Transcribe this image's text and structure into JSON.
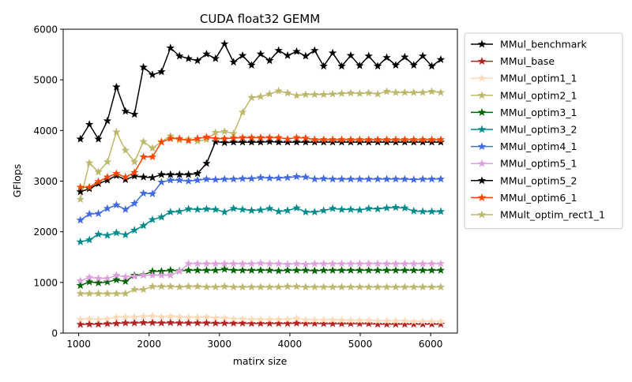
{
  "chart_data": {
    "type": "line",
    "title": "CUDA float32 GEMM",
    "xlabel": "matirx size",
    "ylabel": "GFlops",
    "xlim": [
      780,
      6380
    ],
    "ylim": [
      0,
      6000
    ],
    "xticks": [
      1000,
      2000,
      3000,
      4000,
      5000,
      6000
    ],
    "yticks": [
      0,
      1000,
      2000,
      3000,
      4000,
      5000,
      6000
    ],
    "grid": false,
    "legend_position": "right",
    "x": [
      1024,
      1152,
      1280,
      1408,
      1536,
      1664,
      1792,
      1920,
      2048,
      2176,
      2304,
      2432,
      2560,
      2688,
      2816,
      2944,
      3072,
      3200,
      3328,
      3456,
      3584,
      3712,
      3840,
      3968,
      4096,
      4224,
      4352,
      4480,
      4608,
      4736,
      4864,
      4992,
      5120,
      5248,
      5376,
      5504,
      5632,
      5760,
      5888,
      6016,
      6144
    ],
    "series": [
      {
        "name": "MMul_benchmark",
        "color": "#000000",
        "values": [
          3830,
          4120,
          3830,
          4190,
          4860,
          4380,
          4320,
          5250,
          5100,
          5160,
          5630,
          5470,
          5420,
          5380,
          5510,
          5420,
          5710,
          5350,
          5480,
          5290,
          5510,
          5380,
          5580,
          5480,
          5560,
          5470,
          5580,
          5270,
          5530,
          5270,
          5480,
          5280,
          5470,
          5270,
          5440,
          5290,
          5450,
          5290,
          5470,
          5270,
          5400
        ]
      },
      {
        "name": "MMul_base",
        "color": "#b22222",
        "values": [
          170,
          175,
          175,
          185,
          190,
          200,
          200,
          205,
          205,
          200,
          205,
          200,
          200,
          200,
          200,
          195,
          195,
          195,
          195,
          190,
          190,
          190,
          190,
          190,
          195,
          190,
          190,
          185,
          185,
          185,
          185,
          185,
          185,
          175,
          175,
          175,
          175,
          175,
          175,
          175,
          175
        ]
      },
      {
        "name": "MMul_optim1_1",
        "color": "#ffdab9",
        "values": [
          270,
          280,
          270,
          280,
          310,
          320,
          320,
          330,
          340,
          320,
          330,
          320,
          310,
          310,
          320,
          300,
          300,
          280,
          280,
          270,
          270,
          270,
          270,
          270,
          290,
          260,
          260,
          260,
          260,
          255,
          250,
          250,
          250,
          240,
          240,
          240,
          240,
          230,
          230,
          230,
          230
        ]
      },
      {
        "name": "MMul_optim2_1",
        "color": "#bdb76b",
        "values": [
          2640,
          3360,
          3180,
          3380,
          3970,
          3610,
          3380,
          3780,
          3650,
          3780,
          3890,
          3810,
          3830,
          3790,
          3820,
          3960,
          3980,
          3940,
          4360,
          4650,
          4670,
          4720,
          4780,
          4740,
          4690,
          4710,
          4710,
          4710,
          4720,
          4730,
          4740,
          4730,
          4740,
          4720,
          4770,
          4750,
          4750,
          4750,
          4750,
          4770,
          4750
        ]
      },
      {
        "name": "MMul_optim3_1",
        "color": "#006400",
        "values": [
          940,
          1010,
          990,
          1010,
          1050,
          1020,
          1140,
          1150,
          1220,
          1220,
          1240,
          1230,
          1240,
          1240,
          1240,
          1240,
          1260,
          1240,
          1240,
          1240,
          1240,
          1240,
          1230,
          1240,
          1240,
          1240,
          1230,
          1240,
          1240,
          1240,
          1240,
          1240,
          1240,
          1240,
          1240,
          1240,
          1240,
          1240,
          1240,
          1240,
          1240
        ]
      },
      {
        "name": "MMul_optim3_2",
        "color": "#008b8b",
        "values": [
          1800,
          1840,
          1950,
          1930,
          1980,
          1940,
          2030,
          2120,
          2240,
          2290,
          2390,
          2400,
          2450,
          2440,
          2450,
          2440,
          2390,
          2460,
          2440,
          2420,
          2430,
          2460,
          2400,
          2420,
          2470,
          2390,
          2390,
          2420,
          2460,
          2440,
          2440,
          2430,
          2460,
          2450,
          2470,
          2480,
          2470,
          2410,
          2400,
          2400,
          2400
        ]
      },
      {
        "name": "MMul_optim4_1",
        "color": "#4169e1",
        "values": [
          2230,
          2350,
          2360,
          2460,
          2530,
          2440,
          2560,
          2760,
          2750,
          2980,
          3020,
          3020,
          3000,
          3020,
          3040,
          3030,
          3040,
          3040,
          3050,
          3050,
          3070,
          3060,
          3060,
          3070,
          3090,
          3080,
          3040,
          3050,
          3040,
          3040,
          3040,
          3040,
          3040,
          3040,
          3040,
          3040,
          3040,
          3030,
          3040,
          3040,
          3040
        ]
      },
      {
        "name": "MMul_optim5_1",
        "color": "#dda0dd",
        "values": [
          1030,
          1100,
          1080,
          1080,
          1140,
          1110,
          1120,
          1140,
          1140,
          1140,
          1140,
          1220,
          1370,
          1370,
          1370,
          1370,
          1370,
          1370,
          1370,
          1370,
          1380,
          1370,
          1370,
          1360,
          1370,
          1360,
          1370,
          1370,
          1370,
          1370,
          1370,
          1370,
          1370,
          1370,
          1370,
          1370,
          1370,
          1370,
          1370,
          1370,
          1370
        ]
      },
      {
        "name": "MMul_optim5_2",
        "color": "#000000",
        "values": [
          2790,
          2850,
          2950,
          3020,
          3110,
          3030,
          3100,
          3080,
          3070,
          3130,
          3130,
          3130,
          3130,
          3150,
          3350,
          3780,
          3760,
          3770,
          3770,
          3770,
          3770,
          3780,
          3770,
          3770,
          3770,
          3770,
          3770,
          3770,
          3770,
          3770,
          3770,
          3770,
          3770,
          3770,
          3770,
          3770,
          3770,
          3770,
          3770,
          3770,
          3770
        ]
      },
      {
        "name": "MMul_optim6_1",
        "color": "#ff4500",
        "values": [
          2880,
          2880,
          2990,
          3080,
          3150,
          3080,
          3170,
          3480,
          3480,
          3770,
          3840,
          3840,
          3800,
          3840,
          3870,
          3840,
          3840,
          3850,
          3860,
          3860,
          3860,
          3860,
          3860,
          3830,
          3860,
          3850,
          3820,
          3820,
          3820,
          3820,
          3820,
          3820,
          3820,
          3820,
          3820,
          3820,
          3820,
          3820,
          3820,
          3820,
          3820
        ]
      },
      {
        "name": "MMult_optim_rect1_1",
        "color": "#bdb76b",
        "values": [
          780,
          780,
          780,
          780,
          780,
          780,
          860,
          860,
          920,
          920,
          920,
          910,
          920,
          920,
          910,
          910,
          920,
          910,
          910,
          910,
          910,
          910,
          910,
          920,
          920,
          910,
          910,
          910,
          910,
          910,
          910,
          910,
          910,
          910,
          910,
          910,
          910,
          910,
          910,
          910,
          910
        ]
      }
    ]
  }
}
